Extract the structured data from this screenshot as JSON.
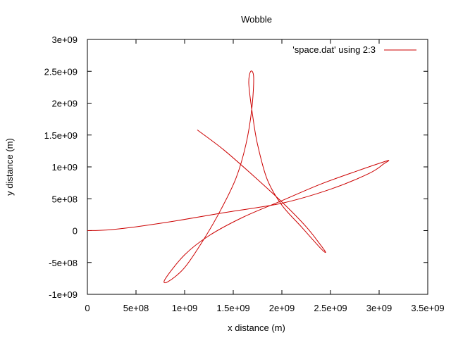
{
  "chart_data": {
    "type": "line",
    "title": "Wobble",
    "xlabel": "x distance (m)",
    "ylabel": "y distance (m)",
    "xlim": [
      0,
      3500000000
    ],
    "ylim": [
      -1000000000,
      3000000000
    ],
    "xticks": [
      "0",
      "5e+08",
      "1e+09",
      "1.5e+09",
      "2e+09",
      "2.5e+09",
      "3e+09",
      "3.5e+09"
    ],
    "yticks": [
      "-1e+09",
      "-5e+08",
      "0",
      "5e+08",
      "1e+09",
      "1.5e+09",
      "2e+09",
      "2.5e+09",
      "3e+09"
    ],
    "grid": false,
    "legend_position": "top-right",
    "series": [
      {
        "name": "'space.dat' using 2:3",
        "color": "#cc0000",
        "x": [
          0,
          200000000,
          500000000,
          900000000,
          1400000000,
          2000000000,
          2500000000,
          2900000000,
          3050000000,
          3100000000,
          3050000000,
          2800000000,
          2400000000,
          2000000000,
          1600000000,
          1250000000,
          1000000000,
          800000000,
          830000000,
          1000000000,
          1200000000,
          1380000000,
          1530000000,
          1630000000,
          1690000000,
          1710000000,
          1680000000,
          1660000000,
          1700000000,
          1750000000,
          1850000000,
          2000000000,
          2200000000,
          2400000000,
          2450000000,
          2400000000,
          2250000000,
          2000000000,
          1700000000,
          1400000000,
          1130000000
        ],
        "y": [
          0,
          10000000,
          60000000,
          150000000,
          280000000,
          430000000,
          650000000,
          900000000,
          1050000000,
          1100000000,
          1080000000,
          950000000,
          730000000,
          470000000,
          210000000,
          -80000000,
          -380000000,
          -760000000,
          -800000000,
          -580000000,
          -130000000,
          350000000,
          830000000,
          1350000000,
          1900000000,
          2400000000,
          2500000000,
          2300000000,
          1800000000,
          1350000000,
          800000000,
          400000000,
          60000000,
          -280000000,
          -340000000,
          -230000000,
          60000000,
          450000000,
          870000000,
          1270000000,
          1580000000
        ]
      }
    ]
  }
}
